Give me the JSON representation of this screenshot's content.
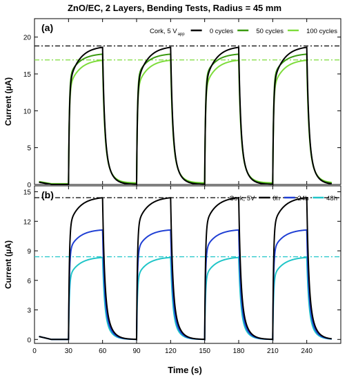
{
  "title": "ZnO/EC, 2 Layers, Bending Tests, Radius = 45 mm",
  "xlabel": "Time (s)",
  "x_ticks": [
    0,
    30,
    60,
    90,
    120,
    150,
    180,
    210,
    240
  ],
  "chart_data": [
    {
      "type": "line",
      "panel_label": "(a)",
      "ylabel": "Current (µA)",
      "xlim": [
        0,
        270
      ],
      "ylim": [
        0,
        22.5
      ],
      "y_ticks": [
        0,
        5,
        10,
        15,
        20
      ],
      "legend_placement": "top-right",
      "legend_prefix": "Cork, 5 V",
      "legend_prefix_sub": "app",
      "on_intervals": [
        [
          30,
          60
        ],
        [
          90,
          120
        ],
        [
          150,
          180
        ],
        [
          210,
          240
        ]
      ],
      "baseline_before_on": 0.3,
      "series": [
        {
          "name": "0 cycles",
          "color": "#000000",
          "on_peak": 18.8,
          "on_initial": 13.5,
          "off_floor": 0.0,
          "offset": 0.0
        },
        {
          "name": "50 cycles",
          "color": "#3a9a10",
          "on_peak": 17.8,
          "on_initial": 14.5,
          "off_floor": 0.1,
          "offset": 0.8
        },
        {
          "name": "100 cycles",
          "color": "#7ddc3a",
          "on_peak": 17.0,
          "on_initial": 13.0,
          "off_floor": 0.2,
          "offset": 1.2
        }
      ],
      "reference_lines": [
        {
          "y": 18.8,
          "color": "#000000",
          "style": "dash-dot"
        },
        {
          "y": 16.9,
          "color": "#7ddc3a",
          "style": "dash-dot"
        }
      ]
    },
    {
      "type": "line",
      "panel_label": "(b)",
      "ylabel": "Current (µA)",
      "xlim": [
        0,
        270
      ],
      "ylim": [
        -0.4,
        15.6
      ],
      "y_ticks": [
        0,
        3,
        6,
        9,
        12,
        15
      ],
      "y_tick_labels": [
        "0",
        "3",
        "6",
        "9",
        "12",
        "15"
      ],
      "legend_placement": "top-right",
      "legend_prefix": "Cork, 5V",
      "on_intervals": [
        [
          30,
          60
        ],
        [
          90,
          120
        ],
        [
          150,
          180
        ],
        [
          210,
          240
        ]
      ],
      "baseline_before_on": 0.3,
      "series": [
        {
          "name": "0h",
          "color": "#000000",
          "on_peak": 14.5,
          "on_initial": 11.5,
          "off_floor": 0.0,
          "offset": 0.0
        },
        {
          "name": "24h",
          "color": "#1f3fd4",
          "on_peak": 11.2,
          "on_initial": 9.0,
          "off_floor": 0.0,
          "offset": 0.4
        },
        {
          "name": "48h",
          "color": "#20c5c8",
          "on_peak": 8.4,
          "on_initial": 6.3,
          "off_floor": 0.0,
          "offset": 0.8
        }
      ],
      "reference_lines": [
        {
          "y": 14.4,
          "color": "#000000",
          "style": "dash-dot"
        },
        {
          "y": 8.4,
          "color": "#20c5c8",
          "style": "dash-dot"
        }
      ]
    }
  ]
}
